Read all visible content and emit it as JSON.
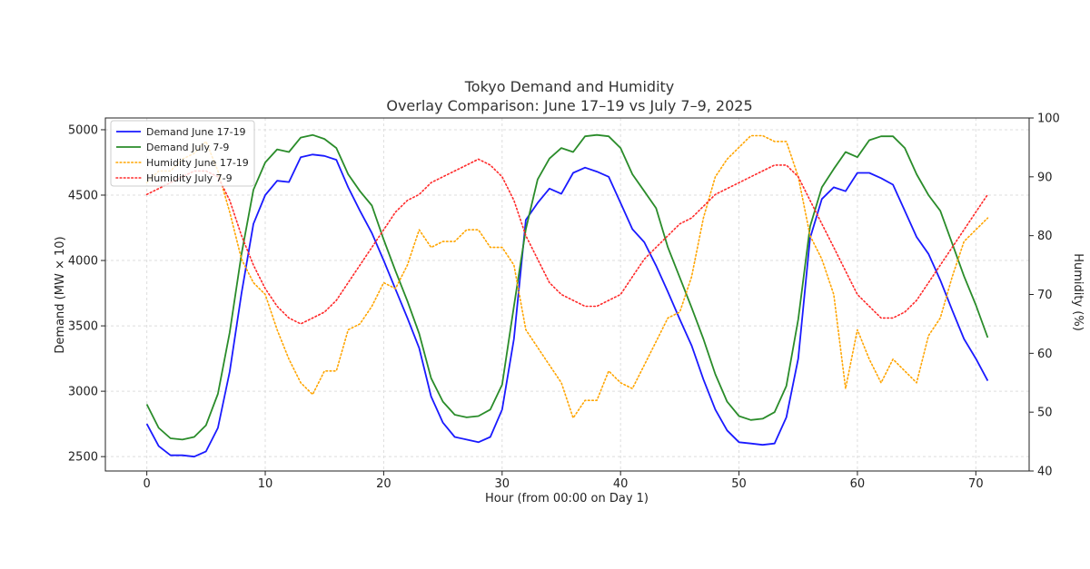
{
  "chart_data": {
    "type": "line",
    "title": "Tokyo Demand and Humidity",
    "subtitle": "Overlay Comparison: June 17–19 vs July 7–9, 2025",
    "xlabel": "Hour (from 00:00 on Day 1)",
    "ylabel": "Demand (MW × 10)",
    "y2label": "Humidity (%)",
    "xlim": [
      -3.5,
      74.5
    ],
    "ylim": [
      2390,
      5090
    ],
    "y2lim": [
      40,
      100
    ],
    "xticks": [
      "0",
      "10",
      "20",
      "30",
      "40",
      "50",
      "60",
      "70"
    ],
    "yticks": [
      "2500",
      "3000",
      "3500",
      "4000",
      "4500",
      "5000"
    ],
    "y2ticks": [
      "40",
      "50",
      "60",
      "70",
      "80",
      "90",
      "100"
    ],
    "grid": true,
    "legend_position": "top-left",
    "x": [
      0,
      1,
      2,
      3,
      4,
      5,
      6,
      7,
      8,
      9,
      10,
      11,
      12,
      13,
      14,
      15,
      16,
      17,
      18,
      19,
      20,
      21,
      22,
      23,
      24,
      25,
      26,
      27,
      28,
      29,
      30,
      31,
      32,
      33,
      34,
      35,
      36,
      37,
      38,
      39,
      40,
      41,
      42,
      43,
      44,
      45,
      46,
      47,
      48,
      49,
      50,
      51,
      52,
      53,
      54,
      55,
      56,
      57,
      58,
      59,
      60,
      61,
      62,
      63,
      64,
      65,
      66,
      67,
      68,
      69,
      70,
      71
    ],
    "series": [
      {
        "name": "Demand June 17-19",
        "axis": "left",
        "color": "#1a1aff",
        "style": "solid",
        "values": [
          2750,
          2580,
          2510,
          2510,
          2500,
          2540,
          2720,
          3150,
          3750,
          4280,
          4500,
          4610,
          4600,
          4790,
          4810,
          4800,
          4770,
          4560,
          4380,
          4210,
          4000,
          3780,
          3560,
          3330,
          2960,
          2760,
          2650,
          2630,
          2610,
          2650,
          2860,
          3400,
          4310,
          4440,
          4550,
          4510,
          4670,
          4710,
          4680,
          4640,
          4440,
          4240,
          4140,
          3960,
          3760,
          3550,
          3350,
          3090,
          2860,
          2700,
          2610,
          2600,
          2590,
          2600,
          2800,
          3250,
          4170,
          4470,
          4560,
          4530,
          4670,
          4670,
          4630,
          4580,
          4380,
          4180,
          4050,
          3850,
          3620,
          3400,
          3250,
          3080
        ]
      },
      {
        "name": "Demand July 7-9",
        "axis": "left",
        "color": "#2a8c2a",
        "style": "solid",
        "values": [
          2900,
          2720,
          2640,
          2630,
          2650,
          2740,
          2980,
          3450,
          4050,
          4540,
          4750,
          4850,
          4830,
          4940,
          4960,
          4930,
          4860,
          4660,
          4530,
          4420,
          4160,
          3920,
          3690,
          3440,
          3100,
          2920,
          2820,
          2800,
          2810,
          2860,
          3050,
          3650,
          4240,
          4620,
          4780,
          4860,
          4830,
          4950,
          4960,
          4950,
          4860,
          4660,
          4530,
          4400,
          4100,
          3870,
          3640,
          3400,
          3130,
          2920,
          2810,
          2780,
          2790,
          2840,
          3040,
          3550,
          4260,
          4560,
          4700,
          4830,
          4790,
          4920,
          4950,
          4950,
          4860,
          4660,
          4500,
          4380,
          4130,
          3880,
          3660,
          3410
        ]
      },
      {
        "name": "Humidity June 17-19",
        "axis": "right",
        "color": "#ffa500",
        "style": "dotted",
        "values": [
          89,
          91,
          91,
          93,
          94,
          96,
          91,
          84,
          76,
          72,
          70,
          64,
          59,
          55,
          53,
          57,
          57,
          64,
          65,
          68,
          72,
          71,
          75,
          81,
          78,
          79,
          79,
          81,
          81,
          78,
          78,
          75,
          64,
          61,
          58,
          55,
          49,
          52,
          52,
          57,
          55,
          54,
          58,
          62,
          66,
          67,
          73,
          83,
          90,
          93,
          95,
          97,
          97,
          96,
          96,
          90,
          80,
          76,
          70,
          54,
          64,
          59,
          55,
          59,
          57,
          55,
          63,
          66,
          73,
          79,
          81,
          83
        ]
      },
      {
        "name": "Humidity July 7-9",
        "axis": "right",
        "color": "#ff2a2a",
        "style": "dotted",
        "values": [
          87,
          88,
          89,
          90,
          91,
          91,
          90,
          86,
          80,
          75,
          71,
          68,
          66,
          65,
          66,
          67,
          69,
          72,
          75,
          78,
          81,
          84,
          86,
          87,
          89,
          90,
          91,
          92,
          93,
          92,
          90,
          86,
          80,
          76,
          72,
          70,
          69,
          68,
          68,
          69,
          70,
          73,
          76,
          78,
          80,
          82,
          83,
          85,
          87,
          88,
          89,
          90,
          91,
          92,
          92,
          90,
          86,
          82,
          78,
          74,
          70,
          68,
          66,
          66,
          67,
          69,
          72,
          75,
          78,
          81,
          84,
          87
        ]
      }
    ]
  }
}
